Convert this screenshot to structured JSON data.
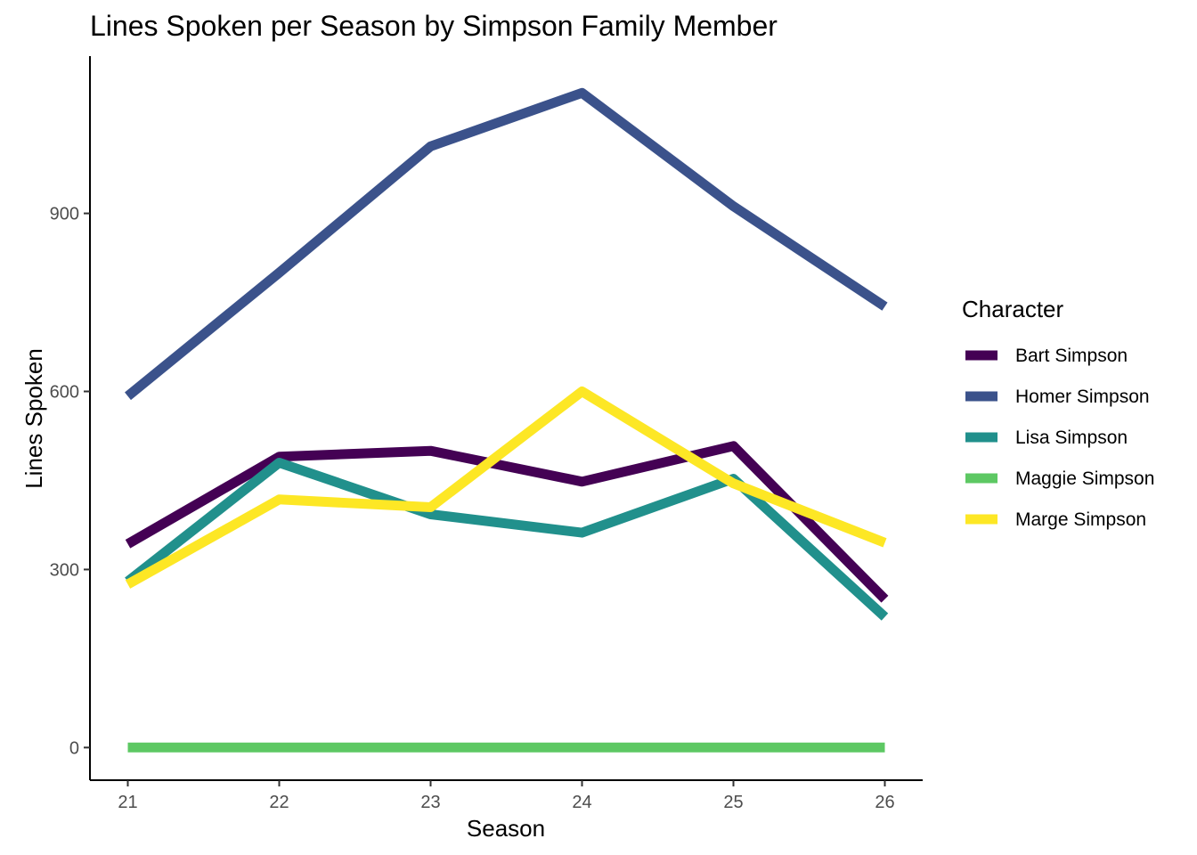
{
  "chart_data": {
    "type": "line",
    "title": "Lines Spoken per Season by Simpson Family Member",
    "xlabel": "Season",
    "ylabel": "Lines Spoken",
    "x": [
      21,
      22,
      23,
      24,
      25,
      26
    ],
    "x_ticks": [
      "21",
      "22",
      "23",
      "24",
      "25",
      "26"
    ],
    "xlim": [
      20.75,
      26.25
    ],
    "ylim": [
      -55,
      1165
    ],
    "y_ticks": [
      "0",
      "300",
      "600",
      "900"
    ],
    "y_tick_values": [
      0,
      300,
      600,
      900
    ],
    "grid": false,
    "legend": {
      "title": "Character",
      "position": "right"
    },
    "series": [
      {
        "name": "Bart Simpson",
        "color": "#440154",
        "values": [
          343,
          490,
          500,
          448,
          508,
          250
        ]
      },
      {
        "name": "Homer Simpson",
        "color": "#3B528B",
        "values": [
          592,
          800,
          1013,
          1103,
          912,
          743
        ]
      },
      {
        "name": "Lisa Simpson",
        "color": "#21908C",
        "values": [
          280,
          480,
          393,
          362,
          453,
          220
        ]
      },
      {
        "name": "Maggie Simpson",
        "color": "#5DC863",
        "values": [
          0,
          0,
          0,
          0,
          0,
          0
        ]
      },
      {
        "name": "Marge Simpson",
        "color": "#FDE725",
        "values": [
          275,
          418,
          405,
          600,
          445,
          345
        ]
      }
    ]
  }
}
